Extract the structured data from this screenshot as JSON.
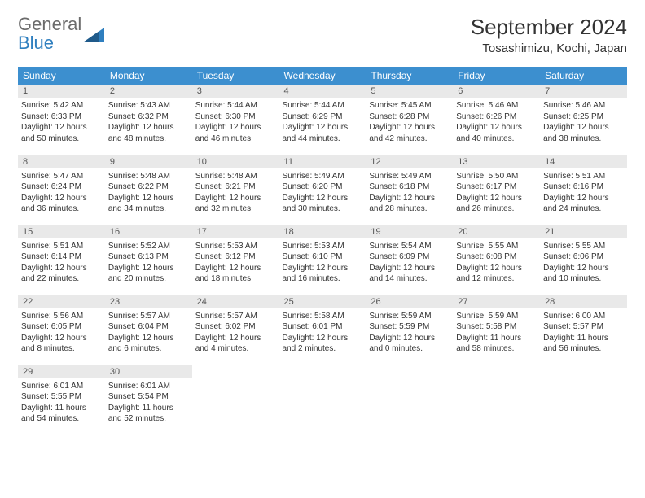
{
  "logo": {
    "word1": "General",
    "word2": "Blue"
  },
  "title": "September 2024",
  "location": "Tosashimizu, Kochi, Japan",
  "colors": {
    "header_bg": "#3c8fcf",
    "header_text": "#ffffff",
    "daynum_bg": "#e9e9e9",
    "row_border": "#2f6fa8",
    "logo_gray": "#6b6b6b",
    "logo_blue": "#2f7fbf"
  },
  "weekdays": [
    "Sunday",
    "Monday",
    "Tuesday",
    "Wednesday",
    "Thursday",
    "Friday",
    "Saturday"
  ],
  "weeks": [
    [
      {
        "n": "1",
        "sr": "5:42 AM",
        "ss": "6:33 PM",
        "dl": "12 hours and 50 minutes."
      },
      {
        "n": "2",
        "sr": "5:43 AM",
        "ss": "6:32 PM",
        "dl": "12 hours and 48 minutes."
      },
      {
        "n": "3",
        "sr": "5:44 AM",
        "ss": "6:30 PM",
        "dl": "12 hours and 46 minutes."
      },
      {
        "n": "4",
        "sr": "5:44 AM",
        "ss": "6:29 PM",
        "dl": "12 hours and 44 minutes."
      },
      {
        "n": "5",
        "sr": "5:45 AM",
        "ss": "6:28 PM",
        "dl": "12 hours and 42 minutes."
      },
      {
        "n": "6",
        "sr": "5:46 AM",
        "ss": "6:26 PM",
        "dl": "12 hours and 40 minutes."
      },
      {
        "n": "7",
        "sr": "5:46 AM",
        "ss": "6:25 PM",
        "dl": "12 hours and 38 minutes."
      }
    ],
    [
      {
        "n": "8",
        "sr": "5:47 AM",
        "ss": "6:24 PM",
        "dl": "12 hours and 36 minutes."
      },
      {
        "n": "9",
        "sr": "5:48 AM",
        "ss": "6:22 PM",
        "dl": "12 hours and 34 minutes."
      },
      {
        "n": "10",
        "sr": "5:48 AM",
        "ss": "6:21 PM",
        "dl": "12 hours and 32 minutes."
      },
      {
        "n": "11",
        "sr": "5:49 AM",
        "ss": "6:20 PM",
        "dl": "12 hours and 30 minutes."
      },
      {
        "n": "12",
        "sr": "5:49 AM",
        "ss": "6:18 PM",
        "dl": "12 hours and 28 minutes."
      },
      {
        "n": "13",
        "sr": "5:50 AM",
        "ss": "6:17 PM",
        "dl": "12 hours and 26 minutes."
      },
      {
        "n": "14",
        "sr": "5:51 AM",
        "ss": "6:16 PM",
        "dl": "12 hours and 24 minutes."
      }
    ],
    [
      {
        "n": "15",
        "sr": "5:51 AM",
        "ss": "6:14 PM",
        "dl": "12 hours and 22 minutes."
      },
      {
        "n": "16",
        "sr": "5:52 AM",
        "ss": "6:13 PM",
        "dl": "12 hours and 20 minutes."
      },
      {
        "n": "17",
        "sr": "5:53 AM",
        "ss": "6:12 PM",
        "dl": "12 hours and 18 minutes."
      },
      {
        "n": "18",
        "sr": "5:53 AM",
        "ss": "6:10 PM",
        "dl": "12 hours and 16 minutes."
      },
      {
        "n": "19",
        "sr": "5:54 AM",
        "ss": "6:09 PM",
        "dl": "12 hours and 14 minutes."
      },
      {
        "n": "20",
        "sr": "5:55 AM",
        "ss": "6:08 PM",
        "dl": "12 hours and 12 minutes."
      },
      {
        "n": "21",
        "sr": "5:55 AM",
        "ss": "6:06 PM",
        "dl": "12 hours and 10 minutes."
      }
    ],
    [
      {
        "n": "22",
        "sr": "5:56 AM",
        "ss": "6:05 PM",
        "dl": "12 hours and 8 minutes."
      },
      {
        "n": "23",
        "sr": "5:57 AM",
        "ss": "6:04 PM",
        "dl": "12 hours and 6 minutes."
      },
      {
        "n": "24",
        "sr": "5:57 AM",
        "ss": "6:02 PM",
        "dl": "12 hours and 4 minutes."
      },
      {
        "n": "25",
        "sr": "5:58 AM",
        "ss": "6:01 PM",
        "dl": "12 hours and 2 minutes."
      },
      {
        "n": "26",
        "sr": "5:59 AM",
        "ss": "5:59 PM",
        "dl": "12 hours and 0 minutes."
      },
      {
        "n": "27",
        "sr": "5:59 AM",
        "ss": "5:58 PM",
        "dl": "11 hours and 58 minutes."
      },
      {
        "n": "28",
        "sr": "6:00 AM",
        "ss": "5:57 PM",
        "dl": "11 hours and 56 minutes."
      }
    ],
    [
      {
        "n": "29",
        "sr": "6:01 AM",
        "ss": "5:55 PM",
        "dl": "11 hours and 54 minutes."
      },
      {
        "n": "30",
        "sr": "6:01 AM",
        "ss": "5:54 PM",
        "dl": "11 hours and 52 minutes."
      },
      null,
      null,
      null,
      null,
      null
    ]
  ],
  "labels": {
    "sunrise": "Sunrise:",
    "sunset": "Sunset:",
    "daylight": "Daylight:"
  }
}
